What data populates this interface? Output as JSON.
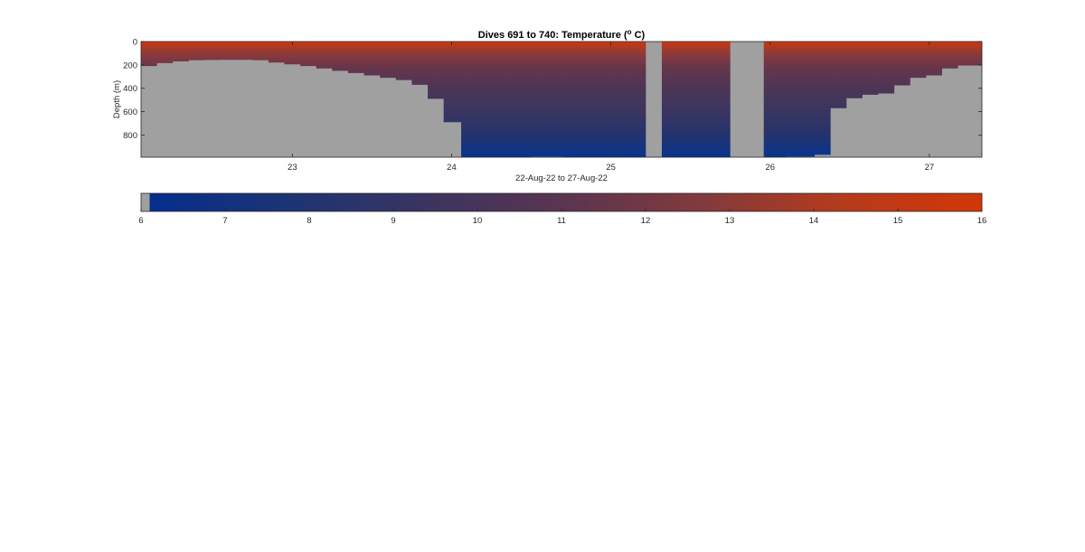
{
  "chart_data": {
    "type": "heatmap",
    "title_main": "Dives 691 to 740: Temperature (",
    "title_sup": "o",
    "title_end": " C)",
    "xlabel": "22-Aug-22 to 27-Aug-22",
    "ylabel": "Depth (m)",
    "xlim": [
      22.05,
      27.33
    ],
    "ylim": [
      0,
      990
    ],
    "y_reversed": true,
    "xticks": [
      23,
      24,
      25,
      26,
      27
    ],
    "xtick_labels": [
      "23",
      "24",
      "25",
      "26",
      "27"
    ],
    "yticks": [
      0,
      200,
      400,
      600,
      800
    ],
    "ytick_labels": [
      "0",
      "200",
      "400",
      "600",
      "800"
    ],
    "missing_color": "#a0a0a0",
    "gaps": [
      [
        25.22,
        25.32
      ],
      [
        25.75,
        25.96
      ]
    ],
    "bathymetry": [
      [
        22.05,
        210
      ],
      [
        22.15,
        185
      ],
      [
        22.25,
        170
      ],
      [
        22.35,
        160
      ],
      [
        22.45,
        158
      ],
      [
        22.55,
        157
      ],
      [
        22.65,
        157
      ],
      [
        22.75,
        160
      ],
      [
        22.85,
        180
      ],
      [
        22.95,
        195
      ],
      [
        23.05,
        210
      ],
      [
        23.15,
        230
      ],
      [
        23.25,
        250
      ],
      [
        23.35,
        270
      ],
      [
        23.45,
        290
      ],
      [
        23.55,
        310
      ],
      [
        23.65,
        330
      ],
      [
        23.75,
        370
      ],
      [
        23.85,
        490
      ],
      [
        23.95,
        690
      ],
      [
        24.06,
        990
      ],
      [
        24.5,
        985
      ],
      [
        24.7,
        990
      ],
      [
        26.1,
        985
      ],
      [
        26.28,
        970
      ],
      [
        26.38,
        570
      ],
      [
        26.48,
        485
      ],
      [
        26.58,
        455
      ],
      [
        26.68,
        445
      ],
      [
        26.78,
        375
      ],
      [
        26.88,
        310
      ],
      [
        26.98,
        290
      ],
      [
        27.08,
        230
      ],
      [
        27.18,
        205
      ],
      [
        27.33,
        205
      ]
    ],
    "colorbar": {
      "range": [
        6,
        16
      ],
      "ticks": [
        "6",
        "7",
        "8",
        "9",
        "10",
        "11",
        "12",
        "13",
        "14",
        "15",
        "16"
      ],
      "no_data_value_below": 6.1,
      "colormap": [
        "#062e8c",
        "#1d3474",
        "#3a3460",
        "#5b3550",
        "#843a3c",
        "#b43b1c",
        "#d23706"
      ]
    }
  }
}
